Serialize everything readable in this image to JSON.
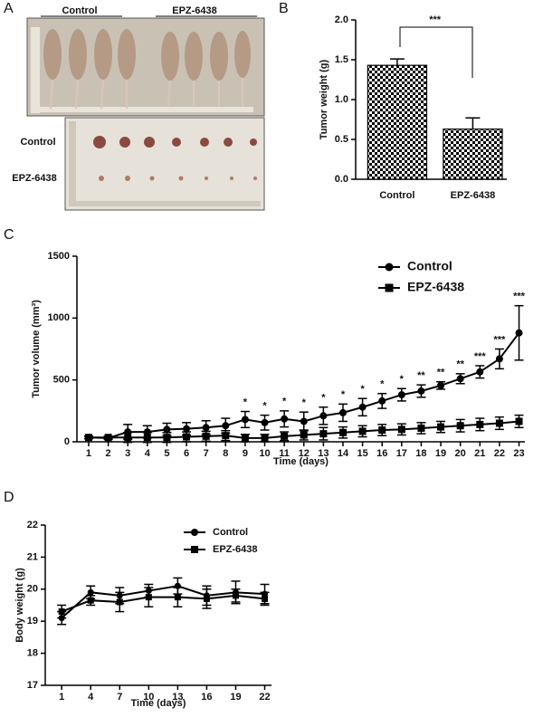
{
  "panels": [
    "A",
    "B",
    "C",
    "D"
  ],
  "photo": {
    "top_labels": [
      "Control",
      "EPZ-6438"
    ],
    "side_labels": [
      "Control",
      "EPZ-6438"
    ]
  },
  "chart_data": [
    {
      "type": "bar",
      "ylabel": "Tumor weight (g)",
      "categories": [
        "Control",
        "EPZ-6438"
      ],
      "values": [
        1.43,
        0.63
      ],
      "errors": [
        0.08,
        0.14
      ],
      "color": "#000000",
      "ylim": [
        0,
        2
      ],
      "yticks": [
        {
          "value": 0,
          "label": "0.0"
        },
        0.5,
        {
          "value": 1,
          "label": "1.0"
        },
        1.5,
        {
          "value": 2,
          "label": "2.0"
        }
      ],
      "annotation": "***"
    },
    {
      "type": "line",
      "xlabel": "Time (days)",
      "ylabel": "Tumor volume (mm³)",
      "x": [
        1,
        2,
        3,
        4,
        5,
        6,
        7,
        8,
        9,
        10,
        11,
        12,
        13,
        14,
        15,
        16,
        17,
        18,
        19,
        20,
        21,
        22,
        23
      ],
      "xlim": [
        0.4,
        23.3
      ],
      "xticks": [
        1,
        2,
        3,
        4,
        5,
        6,
        7,
        8,
        9,
        10,
        11,
        12,
        13,
        14,
        15,
        16,
        17,
        18,
        19,
        20,
        21,
        22,
        23
      ],
      "ylim": [
        0,
        1500
      ],
      "yticks": [
        0,
        500,
        1000,
        1500
      ],
      "legend": "upper-right",
      "series": [
        {
          "name": "Control",
          "color": "#000000",
          "marker": "circle",
          "values": [
            35,
            30,
            80,
            80,
            100,
            105,
            115,
            130,
            180,
            155,
            185,
            165,
            210,
            235,
            280,
            330,
            380,
            410,
            455,
            510,
            565,
            670,
            880
          ],
          "errors": [
            10,
            10,
            60,
            50,
            50,
            50,
            55,
            60,
            65,
            60,
            65,
            75,
            70,
            70,
            70,
            60,
            50,
            50,
            30,
            40,
            50,
            80,
            220
          ]
        },
        {
          "name": "EPZ-6438",
          "color": "#000000",
          "marker": "square",
          "values": [
            35,
            35,
            35,
            35,
            35,
            40,
            45,
            50,
            30,
            30,
            45,
            55,
            65,
            75,
            85,
            95,
            100,
            110,
            120,
            130,
            140,
            150,
            165
          ],
          "errors": [
            10,
            10,
            40,
            40,
            40,
            40,
            40,
            40,
            30,
            30,
            35,
            40,
            50,
            45,
            45,
            45,
            45,
            45,
            45,
            50,
            50,
            50,
            50
          ]
        }
      ],
      "annotations": [
        {
          "x": 9,
          "text": "*"
        },
        {
          "x": 10,
          "text": "*"
        },
        {
          "x": 11,
          "text": "*"
        },
        {
          "x": 12,
          "text": "*"
        },
        {
          "x": 13,
          "text": "*"
        },
        {
          "x": 14,
          "text": "*"
        },
        {
          "x": 15,
          "text": "*"
        },
        {
          "x": 16,
          "text": "*"
        },
        {
          "x": 17,
          "text": "*"
        },
        {
          "x": 18,
          "text": "**"
        },
        {
          "x": 19,
          "text": "**"
        },
        {
          "x": 20,
          "text": "**"
        },
        {
          "x": 21,
          "text": "***"
        },
        {
          "x": 22,
          "text": "***"
        },
        {
          "x": 23,
          "text": "***"
        }
      ]
    },
    {
      "type": "line",
      "xlabel": "Time (days)",
      "ylabel": "Body weight (g)",
      "x": [
        1,
        4,
        7,
        10,
        13,
        16,
        19,
        22
      ],
      "xlim": [
        -0.7,
        22.7
      ],
      "xticks": [
        1,
        4,
        7,
        10,
        13,
        16,
        19,
        22
      ],
      "ylim": [
        17,
        22
      ],
      "yticks": [
        17,
        18,
        19,
        20,
        21,
        22
      ],
      "legend": "upper-right",
      "series": [
        {
          "name": "Control",
          "color": "#000000",
          "marker": "circle",
          "values": [
            19.1,
            19.9,
            19.8,
            19.95,
            20.1,
            19.8,
            19.9,
            19.85
          ],
          "errors": [
            0.2,
            0.2,
            0.25,
            0.2,
            0.25,
            0.3,
            0.35,
            0.3
          ]
        },
        {
          "name": "EPZ-6438",
          "color": "#000000",
          "marker": "square",
          "values": [
            19.3,
            19.65,
            19.6,
            19.75,
            19.75,
            19.7,
            19.8,
            19.7
          ],
          "errors": [
            0.2,
            0.15,
            0.3,
            0.3,
            0.3,
            0.3,
            0.2,
            0.2
          ]
        }
      ]
    }
  ]
}
